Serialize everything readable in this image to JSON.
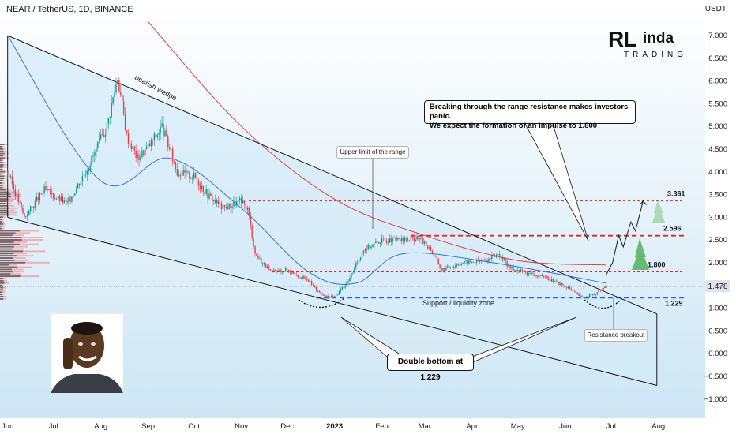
{
  "header": {
    "title": "NEAR / TetherUS, 1D, BINANCE",
    "currency": "USDT"
  },
  "logo": {
    "line1_a": "RL",
    "line1_b": "inda",
    "line2": "TRADING"
  },
  "annotations": {
    "wedge": "bearish wedge",
    "range_top": "Upper limit of the range",
    "support": "Support / liquidity zone",
    "resistance": "Resistance breakout",
    "double_bottom": "Double bottom at 1.229",
    "main_line1": "Breaking through the range resistance makes investors panic.",
    "main_line2": "We expect the formation of an impulse to 1.800"
  },
  "chart_data": {
    "type": "candlestick",
    "symbol": "NEAR / TetherUS",
    "timeframe": "1D",
    "exchange": "BINANCE",
    "current_price": 1.478,
    "ylim": [
      -1.3,
      7.3
    ],
    "y_ticks": [
      7.0,
      6.5,
      6.0,
      5.5,
      5.0,
      4.5,
      4.0,
      3.5,
      3.0,
      2.5,
      2.0,
      1.5,
      1.0,
      0.5,
      0.0,
      -0.5,
      -1.0
    ],
    "x_ticks": [
      "Jun",
      "Jul",
      "Aug",
      "Sep",
      "Oct",
      "Nov",
      "Dec",
      "2023",
      "Feb",
      "Mar",
      "Apr",
      "May",
      "Jun",
      "Jul",
      "Aug"
    ],
    "price_path": [
      [
        "2022-06-01",
        4.0
      ],
      [
        "2022-06-12",
        3.0
      ],
      [
        "2022-06-25",
        3.6
      ],
      [
        "2022-07-10",
        3.3
      ],
      [
        "2022-07-25",
        4.2
      ],
      [
        "2022-08-05",
        5.0
      ],
      [
        "2022-08-12",
        6.1
      ],
      [
        "2022-08-18",
        4.8
      ],
      [
        "2022-08-25",
        4.3
      ],
      [
        "2022-09-02",
        4.6
      ],
      [
        "2022-09-10",
        5.0
      ],
      [
        "2022-09-20",
        4.0
      ],
      [
        "2022-10-01",
        3.9
      ],
      [
        "2022-10-10",
        3.5
      ],
      [
        "2022-10-20",
        3.2
      ],
      [
        "2022-10-31",
        3.35
      ],
      [
        "2022-11-05",
        3.2
      ],
      [
        "2022-11-10",
        2.2
      ],
      [
        "2022-11-20",
        1.8
      ],
      [
        "2022-12-01",
        1.85
      ],
      [
        "2022-12-15",
        1.6
      ],
      [
        "2022-12-25",
        1.25
      ],
      [
        "2023-01-01",
        1.25
      ],
      [
        "2023-01-10",
        1.6
      ],
      [
        "2023-01-20",
        2.3
      ],
      [
        "2023-02-01",
        2.5
      ],
      [
        "2023-02-15",
        2.5
      ],
      [
        "2023-02-25",
        2.55
      ],
      [
        "2023-03-05",
        2.3
      ],
      [
        "2023-03-12",
        1.85
      ],
      [
        "2023-03-25",
        2.0
      ],
      [
        "2023-04-10",
        2.05
      ],
      [
        "2023-04-18",
        2.2
      ],
      [
        "2023-04-25",
        1.9
      ],
      [
        "2023-05-10",
        1.75
      ],
      [
        "2023-05-25",
        1.6
      ],
      [
        "2023-06-05",
        1.4
      ],
      [
        "2023-06-12",
        1.229
      ],
      [
        "2023-06-20",
        1.3
      ],
      [
        "2023-06-28",
        1.478
      ]
    ],
    "levels": [
      {
        "label": "3.361",
        "value": 3.361,
        "style": "dashed"
      },
      {
        "label": "2.596",
        "value": 2.596,
        "style": "dashed"
      },
      {
        "label": "1.800",
        "value": 1.8,
        "style": "dashed"
      },
      {
        "label": "1.229",
        "value": 1.229,
        "style": "dashed"
      }
    ],
    "wedge": {
      "upper": [
        [
          "2022-06-01",
          7.0
        ],
        [
          "2023-06-28",
          1.35
        ]
      ],
      "lower": [
        [
          "2022-06-01",
          3.0
        ],
        [
          "2023-07-31",
          -0.7
        ]
      ],
      "label": "bearish wedge"
    },
    "moving_averages": [
      {
        "color": "#e03c3c",
        "points": [
          [
            "2022-09-01",
            7.3
          ],
          [
            "2022-11-01",
            5.0
          ],
          [
            "2023-01-01",
            3.4
          ],
          [
            "2023-03-01",
            2.6
          ],
          [
            "2023-05-01",
            2.05
          ],
          [
            "2023-06-28",
            1.95
          ]
        ]
      },
      {
        "color": "#3b73d6",
        "points": [
          [
            "2022-06-01",
            7.0
          ],
          [
            "2022-08-01",
            3.8
          ],
          [
            "2022-09-15",
            4.3
          ],
          [
            "2022-11-01",
            3.2
          ],
          [
            "2022-12-15",
            1.8
          ],
          [
            "2023-01-15",
            1.55
          ],
          [
            "2023-02-15",
            2.2
          ],
          [
            "2023-04-15",
            2.0
          ],
          [
            "2023-06-28",
            1.55
          ]
        ]
      }
    ],
    "projection": [
      [
        "2023-06-28",
        1.75
      ],
      [
        "2023-07-02",
        2.0
      ],
      [
        "2023-07-06",
        2.6
      ],
      [
        "2023-07-09",
        2.35
      ],
      [
        "2023-07-14",
        2.9
      ],
      [
        "2023-07-17",
        2.7
      ],
      [
        "2023-07-22",
        3.361
      ]
    ],
    "colors": {
      "up": "#089981",
      "down": "#f23645",
      "accent_red": "#e02828",
      "accent_blue": "#2962ff",
      "bg_fill": "#cfe8f6"
    }
  }
}
